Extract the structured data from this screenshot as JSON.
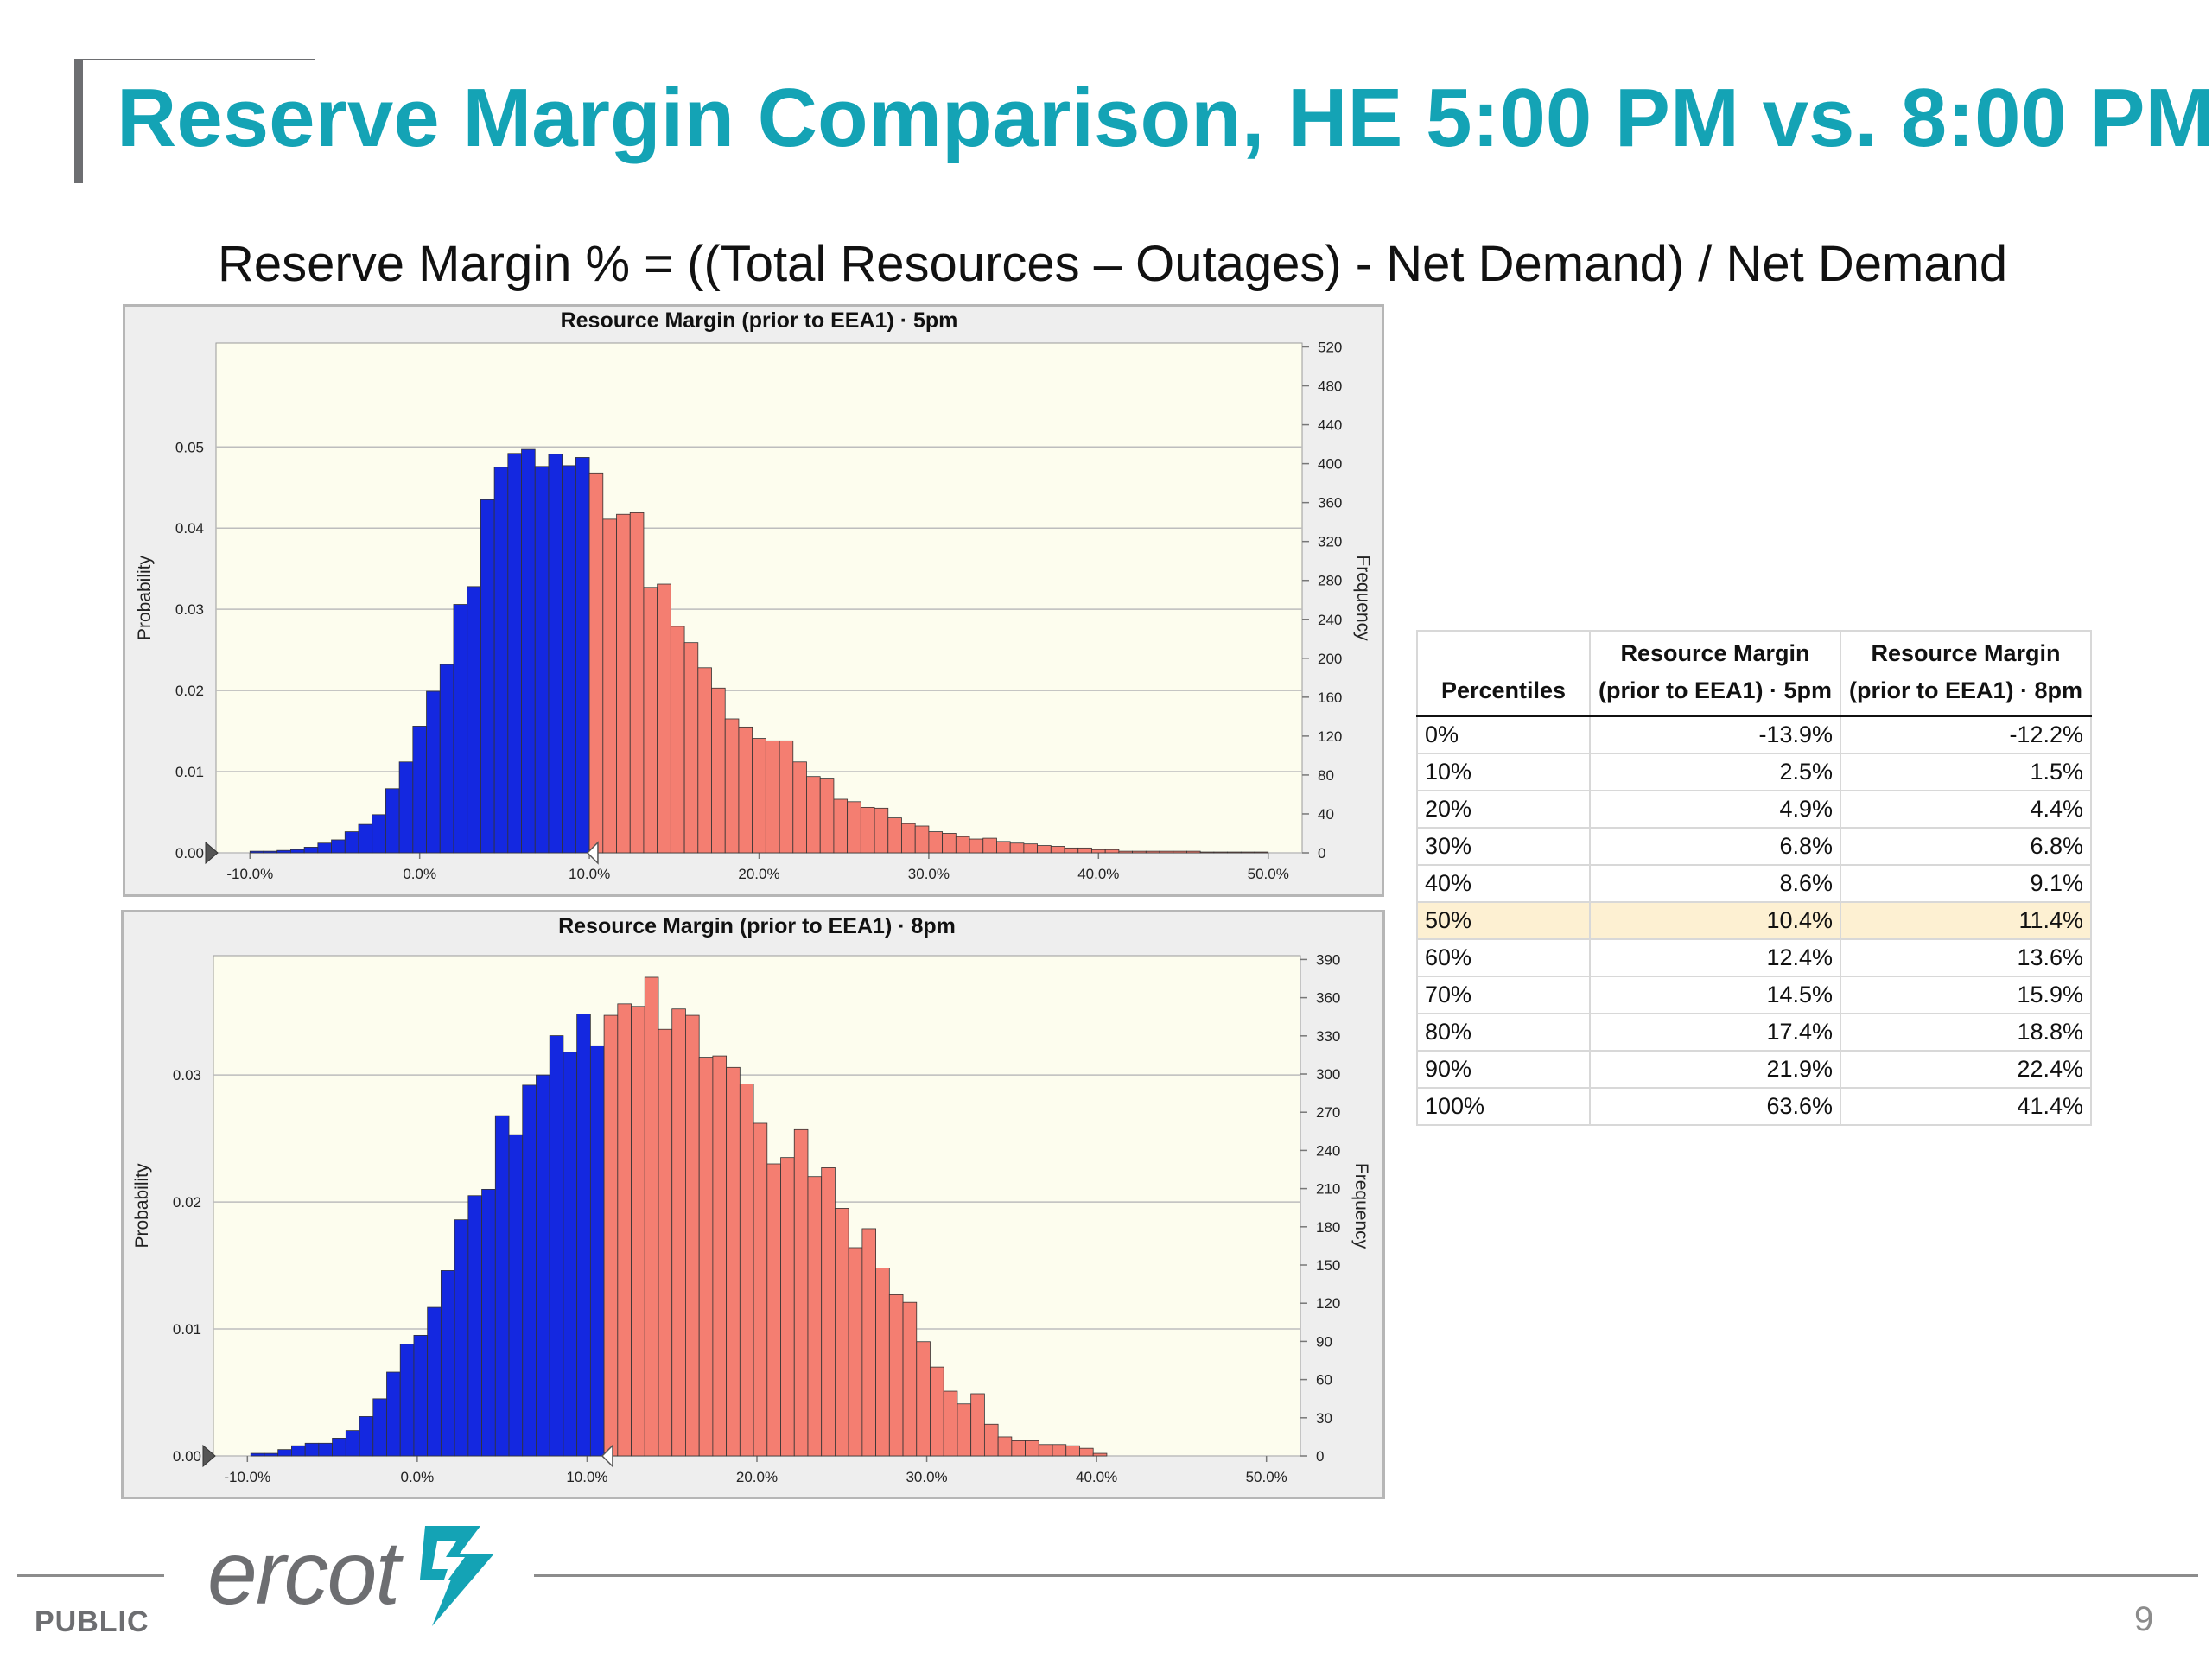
{
  "slide": {
    "title": "Reserve Margin Comparison, HE 5:00 PM vs. 8:00 PM",
    "formula": "Reserve Margin % = ((Total Resources – Outages) - Net Demand) / Net Demand",
    "footer_label": "PUBLIC",
    "page_number": "9",
    "logo_text": "ercot",
    "colors": {
      "title": "#14a3b5",
      "below_median": "#1428e0",
      "above_median": "#f47e71",
      "plot_background": "#fdfdee",
      "highlight_row": "#fdf0d2"
    }
  },
  "chart_data": [
    {
      "type": "bar",
      "title": "Resource Margin (prior to EEA1) · 5pm",
      "ylabel": "Probability",
      "y2label": "Frequency",
      "x_unit": "percent",
      "xlim": [
        -12,
        52
      ],
      "x_ticks": [
        "-10.0%",
        "0.0%",
        "10.0%",
        "20.0%",
        "30.0%",
        "40.0%",
        "50.0%"
      ],
      "x_tick_values": [
        -10,
        0,
        10,
        20,
        30,
        40,
        50
      ],
      "ylim": [
        0,
        0.0628
      ],
      "y_ticks": [
        "0.00",
        "0.01",
        "0.02",
        "0.03",
        "0.04",
        "0.05"
      ],
      "y_tick_values": [
        0,
        0.01,
        0.02,
        0.03,
        0.04,
        0.05
      ],
      "y2lim": [
        0,
        524
      ],
      "y2_ticks": [
        "0",
        "40",
        "80",
        "120",
        "160",
        "200",
        "240",
        "280",
        "320",
        "360",
        "400",
        "440",
        "480",
        "520"
      ],
      "y2_tick_values": [
        0,
        40,
        80,
        120,
        160,
        200,
        240,
        280,
        320,
        360,
        400,
        440,
        480,
        520
      ],
      "bin_width": 0.8,
      "split_value": 10.4,
      "series": [
        {
          "name": "",
          "x": [
            -9.6,
            -8.8,
            -8.0,
            -7.2,
            -6.4,
            -5.6,
            -4.8,
            -4.0,
            -3.2,
            -2.4,
            -1.6,
            -0.8,
            0.0,
            0.8,
            1.6,
            2.4,
            3.2,
            4.0,
            4.8,
            5.6,
            6.4,
            7.2,
            8.0,
            8.8,
            9.6,
            10.4,
            11.2,
            12.0,
            12.8,
            13.6,
            14.4,
            15.2,
            16.0,
            16.8,
            17.6,
            18.4,
            19.2,
            20.0,
            20.8,
            21.6,
            22.4,
            23.2,
            24.0,
            24.8,
            25.6,
            26.4,
            27.2,
            28.0,
            28.8,
            29.6,
            30.4,
            31.2,
            32.0,
            32.8,
            33.6,
            34.4,
            35.2,
            36.0,
            36.8,
            37.6,
            38.4,
            39.2,
            40.0,
            40.8,
            41.6,
            42.4,
            43.2,
            44.0,
            44.8,
            45.6,
            46.4,
            47.2,
            48.0,
            48.8,
            49.6
          ],
          "values": [
            0.0002,
            0.0002,
            0.0003,
            0.0004,
            0.0007,
            0.0012,
            0.0016,
            0.0026,
            0.0035,
            0.0047,
            0.0079,
            0.0112,
            0.0156,
            0.0199,
            0.0232,
            0.0306,
            0.0328,
            0.0435,
            0.0475,
            0.0492,
            0.0497,
            0.0476,
            0.0491,
            0.0477,
            0.0487,
            0.0468,
            0.0411,
            0.0417,
            0.0419,
            0.0327,
            0.0331,
            0.0279,
            0.0259,
            0.0228,
            0.0203,
            0.0165,
            0.0155,
            0.0141,
            0.0138,
            0.0138,
            0.0112,
            0.0094,
            0.0092,
            0.0066,
            0.0063,
            0.0056,
            0.0055,
            0.0043,
            0.0036,
            0.0033,
            0.0026,
            0.0024,
            0.002,
            0.0017,
            0.0018,
            0.0014,
            0.0012,
            0.0011,
            0.0009,
            0.0008,
            0.0006,
            0.0006,
            0.0004,
            0.0004,
            0.0002,
            0.0002,
            0.0002,
            0.0002,
            0.0002,
            0.0002,
            0.0001,
            0.0001,
            0.0001,
            0.0001,
            0.0001
          ]
        }
      ]
    },
    {
      "type": "bar",
      "title": "Resource Margin (prior to EEA1) · 8pm",
      "ylabel": "Probability",
      "y2label": "Frequency",
      "x_unit": "percent",
      "xlim": [
        -12,
        52
      ],
      "x_ticks": [
        "-10.0%",
        "0.0%",
        "10.0%",
        "20.0%",
        "30.0%",
        "40.0%",
        "50.0%"
      ],
      "x_tick_values": [
        -10,
        0,
        10,
        20,
        30,
        40,
        50
      ],
      "ylim": [
        0,
        0.0394
      ],
      "y_ticks": [
        "0.00",
        "0.01",
        "0.02",
        "0.03"
      ],
      "y_tick_values": [
        0,
        0.01,
        0.02,
        0.03
      ],
      "y2lim": [
        0,
        393
      ],
      "y2_ticks": [
        "0",
        "30",
        "60",
        "90",
        "120",
        "150",
        "180",
        "210",
        "240",
        "270",
        "300",
        "330",
        "360",
        "390"
      ],
      "y2_tick_values": [
        0,
        30,
        60,
        90,
        120,
        150,
        180,
        210,
        240,
        270,
        300,
        330,
        360,
        390
      ],
      "bin_width": 0.8,
      "split_value": 11.4,
      "series": [
        {
          "name": "",
          "x": [
            -9.4,
            -8.6,
            -7.8,
            -7.0,
            -6.2,
            -5.4,
            -4.6,
            -3.8,
            -3.0,
            -2.2,
            -1.4,
            -0.6,
            0.2,
            1.0,
            1.8,
            2.6,
            3.4,
            4.2,
            5.0,
            5.8,
            6.6,
            7.4,
            8.2,
            9.0,
            9.8,
            10.6,
            11.4,
            12.2,
            13.0,
            13.8,
            14.6,
            15.4,
            16.2,
            17.0,
            17.8,
            18.6,
            19.4,
            20.2,
            21.0,
            21.8,
            22.6,
            23.4,
            24.2,
            25.0,
            25.8,
            26.6,
            27.4,
            28.2,
            29.0,
            29.8,
            30.6,
            31.4,
            32.2,
            33.0,
            33.8,
            34.6,
            35.4,
            36.2,
            37.0,
            37.8,
            38.6,
            39.4,
            40.2
          ],
          "values": [
            0.0002,
            0.0002,
            0.0005,
            0.0008,
            0.001,
            0.001,
            0.0014,
            0.002,
            0.0031,
            0.0045,
            0.0066,
            0.0088,
            0.0095,
            0.0117,
            0.0146,
            0.0186,
            0.0205,
            0.021,
            0.0268,
            0.0253,
            0.0292,
            0.03,
            0.0331,
            0.0318,
            0.0348,
            0.0323,
            0.0347,
            0.0356,
            0.0354,
            0.0377,
            0.0336,
            0.0352,
            0.0347,
            0.0314,
            0.0315,
            0.0306,
            0.0293,
            0.0262,
            0.023,
            0.0235,
            0.0257,
            0.022,
            0.0227,
            0.0195,
            0.0164,
            0.0179,
            0.0148,
            0.0127,
            0.0121,
            0.009,
            0.007,
            0.0051,
            0.0041,
            0.0049,
            0.0025,
            0.0015,
            0.0012,
            0.0012,
            0.0009,
            0.0009,
            0.0008,
            0.0006,
            0.0002
          ]
        }
      ]
    },
    {
      "type": "table",
      "columns": [
        "Percentiles",
        "Resource Margin (prior to EEA1) · 5pm",
        "Resource Margin (prior to EEA1) · 8pm"
      ],
      "rows": [
        [
          "0%",
          "-13.9%",
          "-12.2%"
        ],
        [
          "10%",
          "2.5%",
          "1.5%"
        ],
        [
          "20%",
          "4.9%",
          "4.4%"
        ],
        [
          "30%",
          "6.8%",
          "6.8%"
        ],
        [
          "40%",
          "8.6%",
          "9.1%"
        ],
        [
          "50%",
          "10.4%",
          "11.4%"
        ],
        [
          "60%",
          "12.4%",
          "13.6%"
        ],
        [
          "70%",
          "14.5%",
          "15.9%"
        ],
        [
          "80%",
          "17.4%",
          "18.8%"
        ],
        [
          "90%",
          "21.9%",
          "22.4%"
        ],
        [
          "100%",
          "63.6%",
          "41.4%"
        ]
      ],
      "highlighted_row": "50%"
    }
  ]
}
